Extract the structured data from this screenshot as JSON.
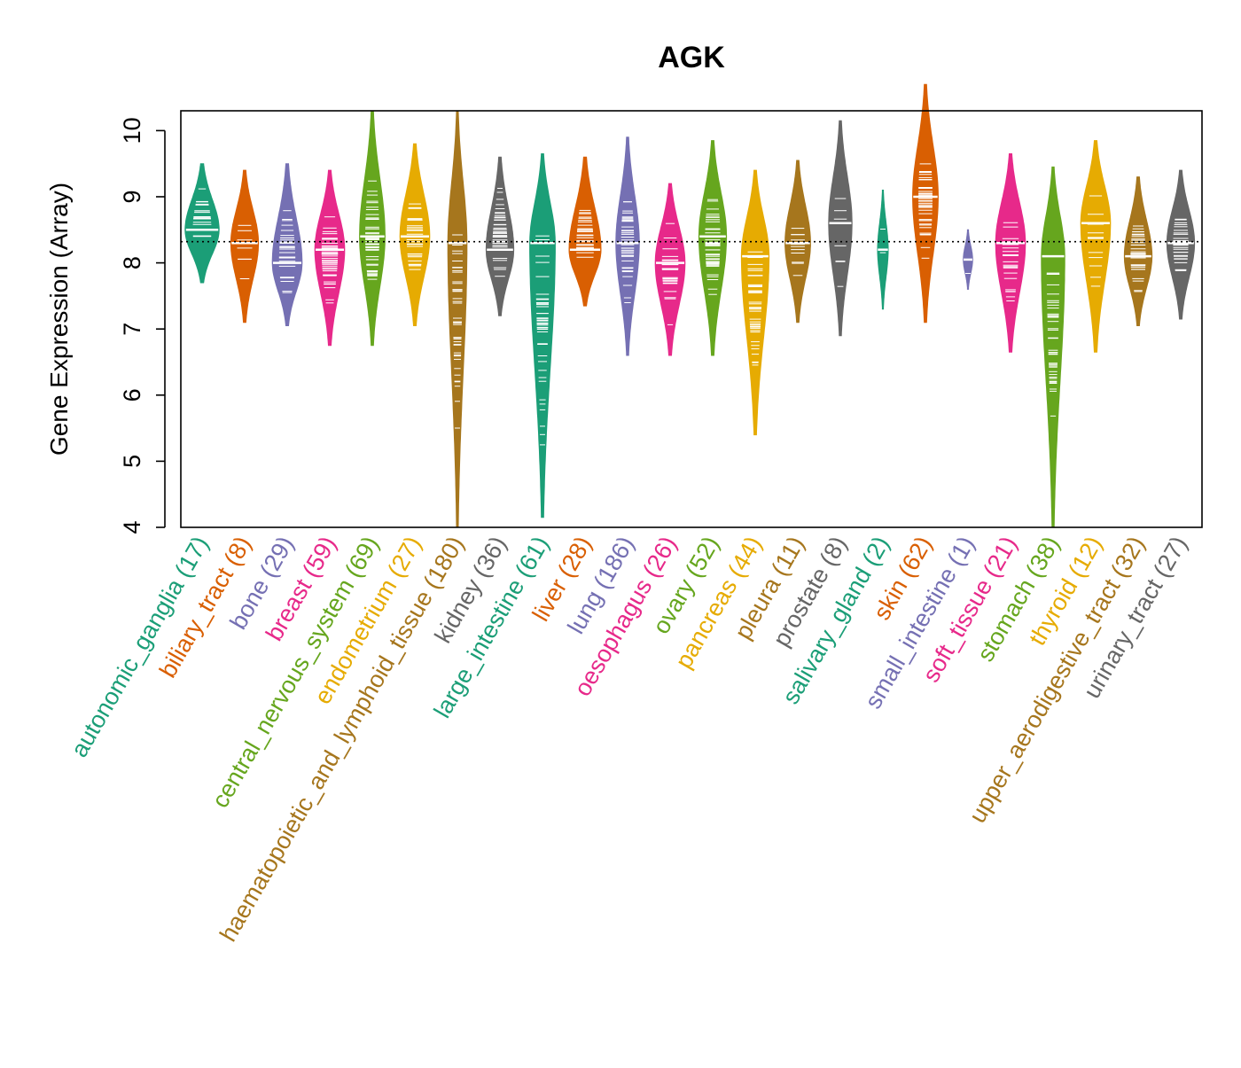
{
  "chart_data": {
    "type": "beanplot",
    "title": "AGK",
    "xlabel": "",
    "ylabel": "Gene Expression (Array)",
    "ylim": [
      4,
      10.3
    ],
    "yticks": [
      4,
      5,
      6,
      7,
      8,
      9,
      10
    ],
    "reference_line": 8.32,
    "categories": [
      {
        "name": "autonomic_ganglia",
        "n": 17,
        "label": "autonomic_ganglia (17)",
        "color": "#1b9e77",
        "min": 7.7,
        "max": 9.5,
        "median": 8.5,
        "half_width": 0.8
      },
      {
        "name": "biliary_tract",
        "n": 8,
        "label": "biliary_tract (8)",
        "color": "#d95f02",
        "min": 7.1,
        "max": 9.4,
        "median": 8.3,
        "half_width": 0.65
      },
      {
        "name": "bone",
        "n": 29,
        "label": "bone (29)",
        "color": "#7570b3",
        "min": 7.05,
        "max": 9.5,
        "median": 8.0,
        "half_width": 0.7
      },
      {
        "name": "breast",
        "n": 59,
        "label": "breast (59)",
        "color": "#e7298a",
        "min": 6.75,
        "max": 9.4,
        "median": 8.2,
        "half_width": 0.7
      },
      {
        "name": "central_nervous_system",
        "n": 69,
        "label": "central_nervous_system (69)",
        "color": "#66a61e",
        "min": 6.75,
        "max": 10.3,
        "median": 8.4,
        "half_width": 0.6
      },
      {
        "name": "endometrium",
        "n": 27,
        "label": "endometrium (27)",
        "color": "#e6ab02",
        "min": 7.05,
        "max": 9.8,
        "median": 8.4,
        "half_width": 0.7
      },
      {
        "name": "haematopoietic_and_lymphoid_tissue",
        "n": 180,
        "label": "haematopoietic_and_lymphoid_tissue (180)",
        "color": "#a6761d",
        "min": 4.0,
        "max": 10.3,
        "median": 8.3,
        "half_width": 0.45
      },
      {
        "name": "kidney",
        "n": 36,
        "label": "kidney (36)",
        "color": "#666666",
        "min": 7.2,
        "max": 9.6,
        "median": 8.2,
        "half_width": 0.65
      },
      {
        "name": "large_intestine",
        "n": 61,
        "label": "large_intestine (61)",
        "color": "#1b9e77",
        "min": 4.15,
        "max": 9.65,
        "median": 8.3,
        "half_width": 0.6
      },
      {
        "name": "liver",
        "n": 28,
        "label": "liver (28)",
        "color": "#d95f02",
        "min": 7.35,
        "max": 9.6,
        "median": 8.2,
        "half_width": 0.75
      },
      {
        "name": "lung",
        "n": 186,
        "label": "lung (186)",
        "color": "#7570b3",
        "min": 6.6,
        "max": 9.9,
        "median": 8.3,
        "half_width": 0.55
      },
      {
        "name": "oesophagus",
        "n": 26,
        "label": "oesophagus (26)",
        "color": "#e7298a",
        "min": 6.6,
        "max": 9.2,
        "median": 8.0,
        "half_width": 0.7
      },
      {
        "name": "ovary",
        "n": 52,
        "label": "ovary (52)",
        "color": "#66a61e",
        "min": 6.6,
        "max": 9.85,
        "median": 8.4,
        "half_width": 0.65
      },
      {
        "name": "pancreas",
        "n": 44,
        "label": "pancreas (44)",
        "color": "#e6ab02",
        "min": 5.4,
        "max": 9.4,
        "median": 8.1,
        "half_width": 0.65
      },
      {
        "name": "pleura",
        "n": 11,
        "label": "pleura (11)",
        "color": "#a6761d",
        "min": 7.1,
        "max": 9.55,
        "median": 8.3,
        "half_width": 0.6
      },
      {
        "name": "prostate",
        "n": 8,
        "label": "prostate (8)",
        "color": "#666666",
        "min": 6.9,
        "max": 10.15,
        "median": 8.6,
        "half_width": 0.55
      },
      {
        "name": "salivary_gland",
        "n": 2,
        "label": "salivary_gland (2)",
        "color": "#1b9e77",
        "min": 7.3,
        "max": 9.1,
        "median": 8.2,
        "half_width": 0.25
      },
      {
        "name": "skin",
        "n": 62,
        "label": "skin (62)",
        "color": "#d95f02",
        "min": 7.1,
        "max": 10.7,
        "median": 9.0,
        "half_width": 0.6
      },
      {
        "name": "small_intestine",
        "n": 1,
        "label": "small_intestine (1)",
        "color": "#7570b3",
        "min": 7.6,
        "max": 8.5,
        "median": 8.05,
        "half_width": 0.22
      },
      {
        "name": "soft_tissue",
        "n": 21,
        "label": "soft_tissue (21)",
        "color": "#e7298a",
        "min": 6.65,
        "max": 9.65,
        "median": 8.3,
        "half_width": 0.7
      },
      {
        "name": "stomach",
        "n": 38,
        "label": "stomach (38)",
        "color": "#66a61e",
        "min": 4.0,
        "max": 9.45,
        "median": 8.1,
        "half_width": 0.55
      },
      {
        "name": "thyroid",
        "n": 12,
        "label": "thyroid (12)",
        "color": "#e6ab02",
        "min": 6.65,
        "max": 9.85,
        "median": 8.6,
        "half_width": 0.7
      },
      {
        "name": "upper_aerodigestive_tract",
        "n": 32,
        "label": "upper_aerodigestive_tract (32)",
        "color": "#a6761d",
        "min": 7.05,
        "max": 9.3,
        "median": 8.1,
        "half_width": 0.65
      },
      {
        "name": "urinary_tract",
        "n": 27,
        "label": "urinary_tract (27)",
        "color": "#666666",
        "min": 7.15,
        "max": 9.4,
        "median": 8.3,
        "half_width": 0.65
      }
    ]
  }
}
